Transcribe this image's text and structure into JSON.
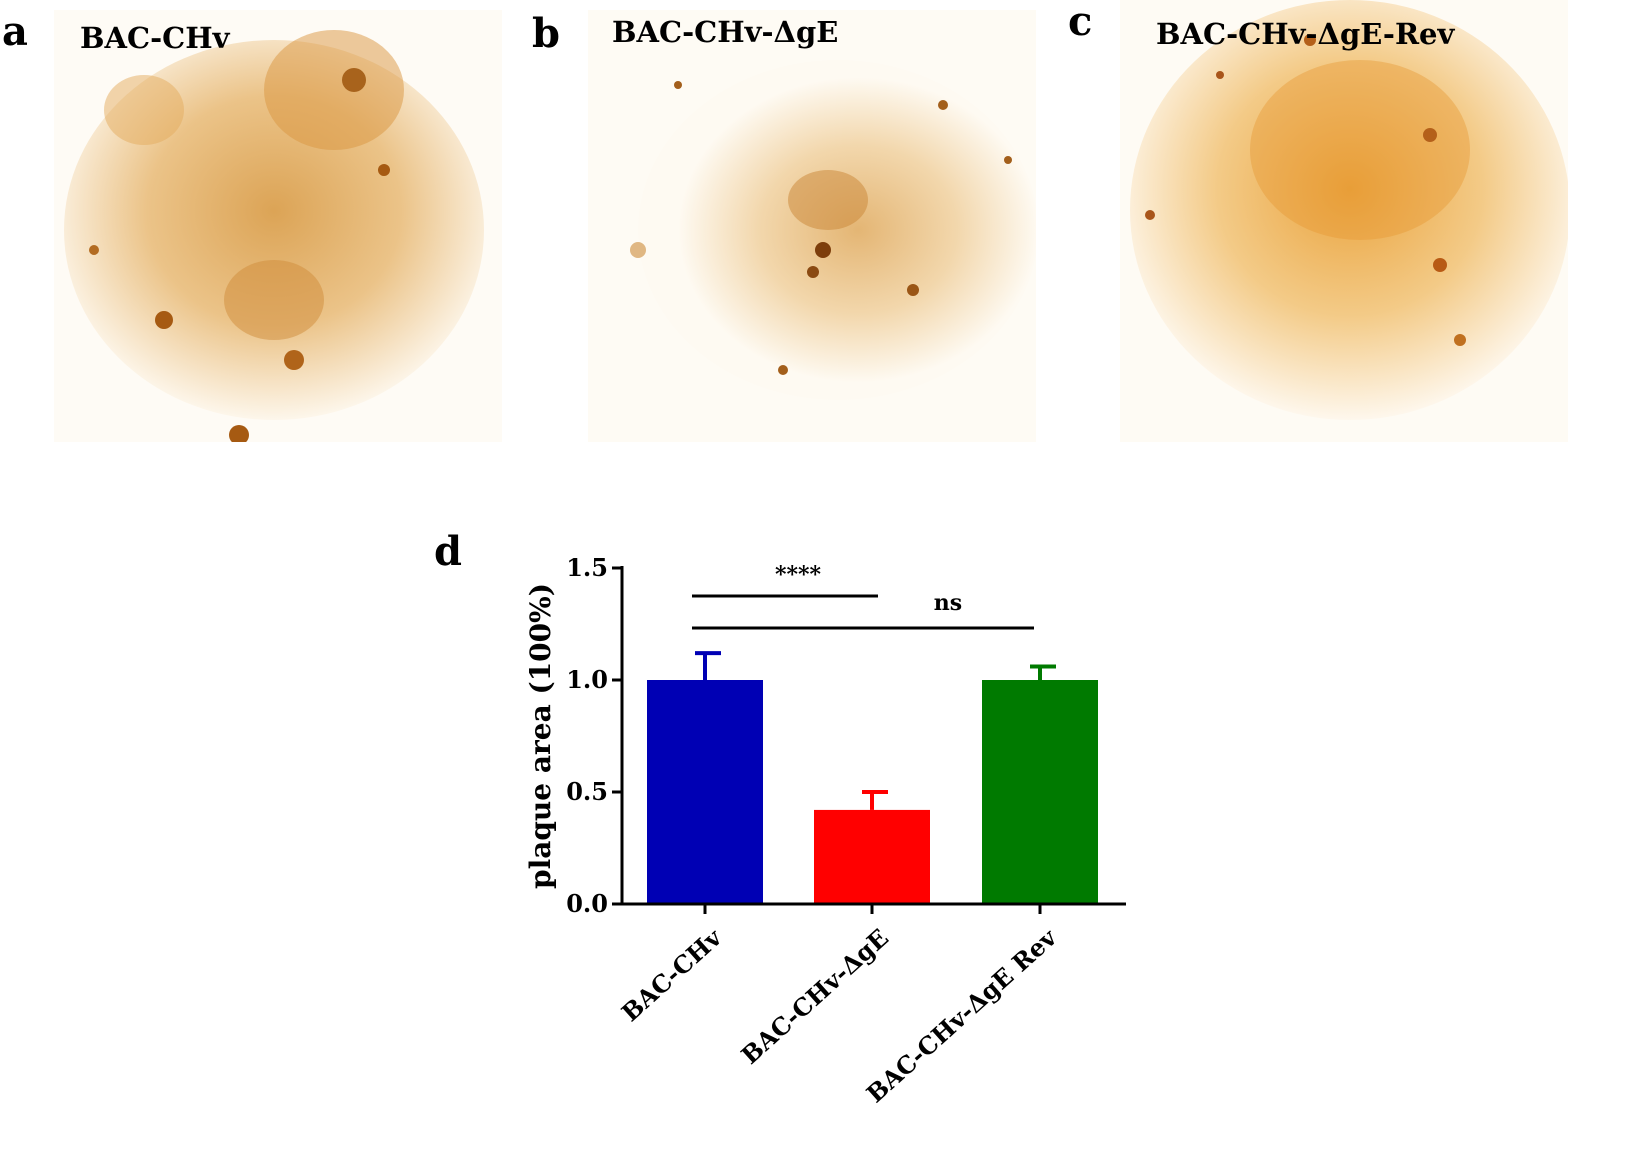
{
  "panels": [
    {
      "letter": "a",
      "label": "BAC-CHv"
    },
    {
      "letter": "b",
      "label": "BAC-CHv-ΔgE"
    },
    {
      "letter": "c",
      "label": "BAC-CHv-ΔgE-Rev"
    }
  ],
  "chart_letter": "d",
  "chart_data": {
    "type": "bar",
    "categories": [
      "BAC-CHv",
      "BAC-CHv-ΔgE",
      "BAC-CHv-ΔgE Rev"
    ],
    "values": [
      1.0,
      0.42,
      1.0
    ],
    "errors": [
      0.12,
      0.08,
      0.06
    ],
    "colors": [
      "#0000b4",
      "#ff0000",
      "#007a00"
    ],
    "ylabel": "plaque area (100%)",
    "ylim": [
      0,
      1.5
    ],
    "yticks": [
      "0.0",
      "0.5",
      "1.0",
      "1.5"
    ],
    "ytick_values": [
      0,
      0.5,
      1.0,
      1.5
    ],
    "significance": [
      {
        "from": 0,
        "to": 1,
        "label": "****"
      },
      {
        "from": 0,
        "to": 2,
        "label": "ns"
      }
    ]
  }
}
